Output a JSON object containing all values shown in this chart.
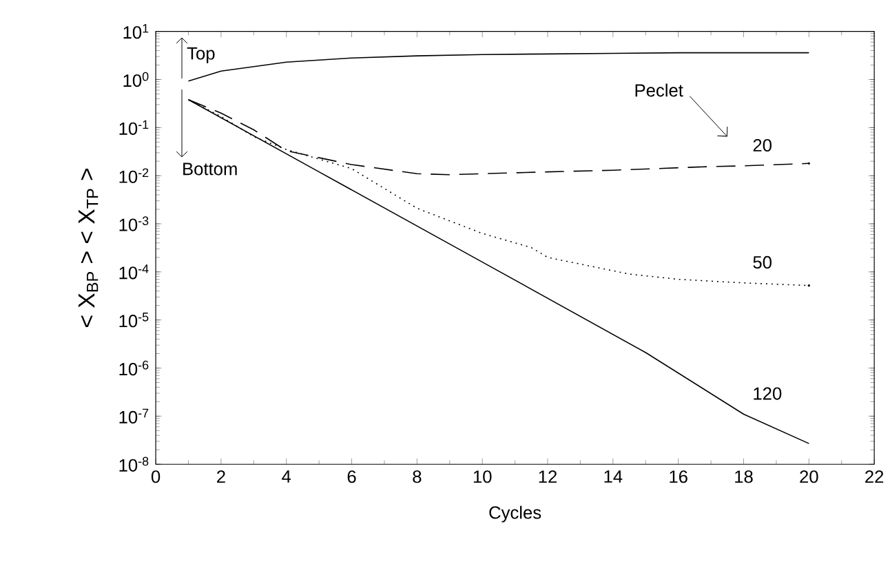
{
  "chart_data": {
    "type": "line",
    "xlabel": "Cycles",
    "ylabel": "< X$_{BP}$ >      < X$_{TP}$ >",
    "log": "y",
    "grid": false,
    "legend": false,
    "marker": "none",
    "xlim": [
      0,
      22
    ],
    "xticks": [
      0,
      2,
      4,
      6,
      8,
      10,
      12,
      14,
      16,
      18,
      20,
      22
    ],
    "ylim": [
      1e-08,
      10
    ],
    "yticks": [
      {
        "value": 1e-08,
        "label": "10$^{-8}$"
      },
      {
        "value": 1e-07,
        "label": "10$^{-7}$"
      },
      {
        "value": 1e-06,
        "label": "10$^{-6}$"
      },
      {
        "value": 1e-05,
        "label": "10$^{-5}$"
      },
      {
        "value": 0.0001,
        "label": "10$^{-4}$"
      },
      {
        "value": 0.001,
        "label": "10$^{-3}$"
      },
      {
        "value": 0.01,
        "label": "10$^{-2}$"
      },
      {
        "value": 0.1,
        "label": "10$^{-1}$"
      },
      {
        "value": 1,
        "label": "10$^{0}$"
      },
      {
        "value": 10,
        "label": "10$^{1}$"
      }
    ],
    "annotations": [
      "Top",
      "Bottom",
      "Peclet"
    ],
    "series": [
      {
        "name": "20",
        "color": "#000000",
        "line_style": "dashed",
        "x": [
          1,
          2,
          3,
          4,
          6,
          8,
          9,
          10,
          12,
          14,
          17,
          18,
          20
        ],
        "values": [
          0.38,
          0.2,
          0.09,
          0.033,
          0.017,
          0.011,
          0.0105,
          0.011,
          0.012,
          0.013,
          0.0155,
          0.016,
          0.018
        ]
      },
      {
        "name": "50",
        "color": "#000000",
        "line_style": "dotted",
        "x": [
          1,
          2,
          3,
          4,
          6,
          8,
          10,
          11.5,
          12,
          14.5,
          16,
          18,
          20
        ],
        "values": [
          0.38,
          0.17,
          0.065,
          0.035,
          0.014,
          0.0021,
          0.00063,
          0.00032,
          0.0002,
          9e-05,
          7e-05,
          5.9e-05,
          5.2e-05
        ]
      },
      {
        "name": "120",
        "color": "#000000",
        "line_style": "solid",
        "x": [
          1,
          5,
          10,
          15,
          18,
          20
        ],
        "values": [
          0.38,
          0.012,
          0.00016,
          2.1e-06,
          1.1e-07,
          2.7e-08
        ]
      },
      {
        "color": "#000000",
        "line_style": "solid",
        "x": [
          1,
          2,
          4,
          6,
          8,
          10,
          12,
          14,
          16,
          18,
          20
        ],
        "values": [
          0.93,
          1.5,
          2.3,
          2.8,
          3.1,
          3.3,
          3.4,
          3.5,
          3.6,
          3.6,
          3.6
        ]
      }
    ]
  }
}
